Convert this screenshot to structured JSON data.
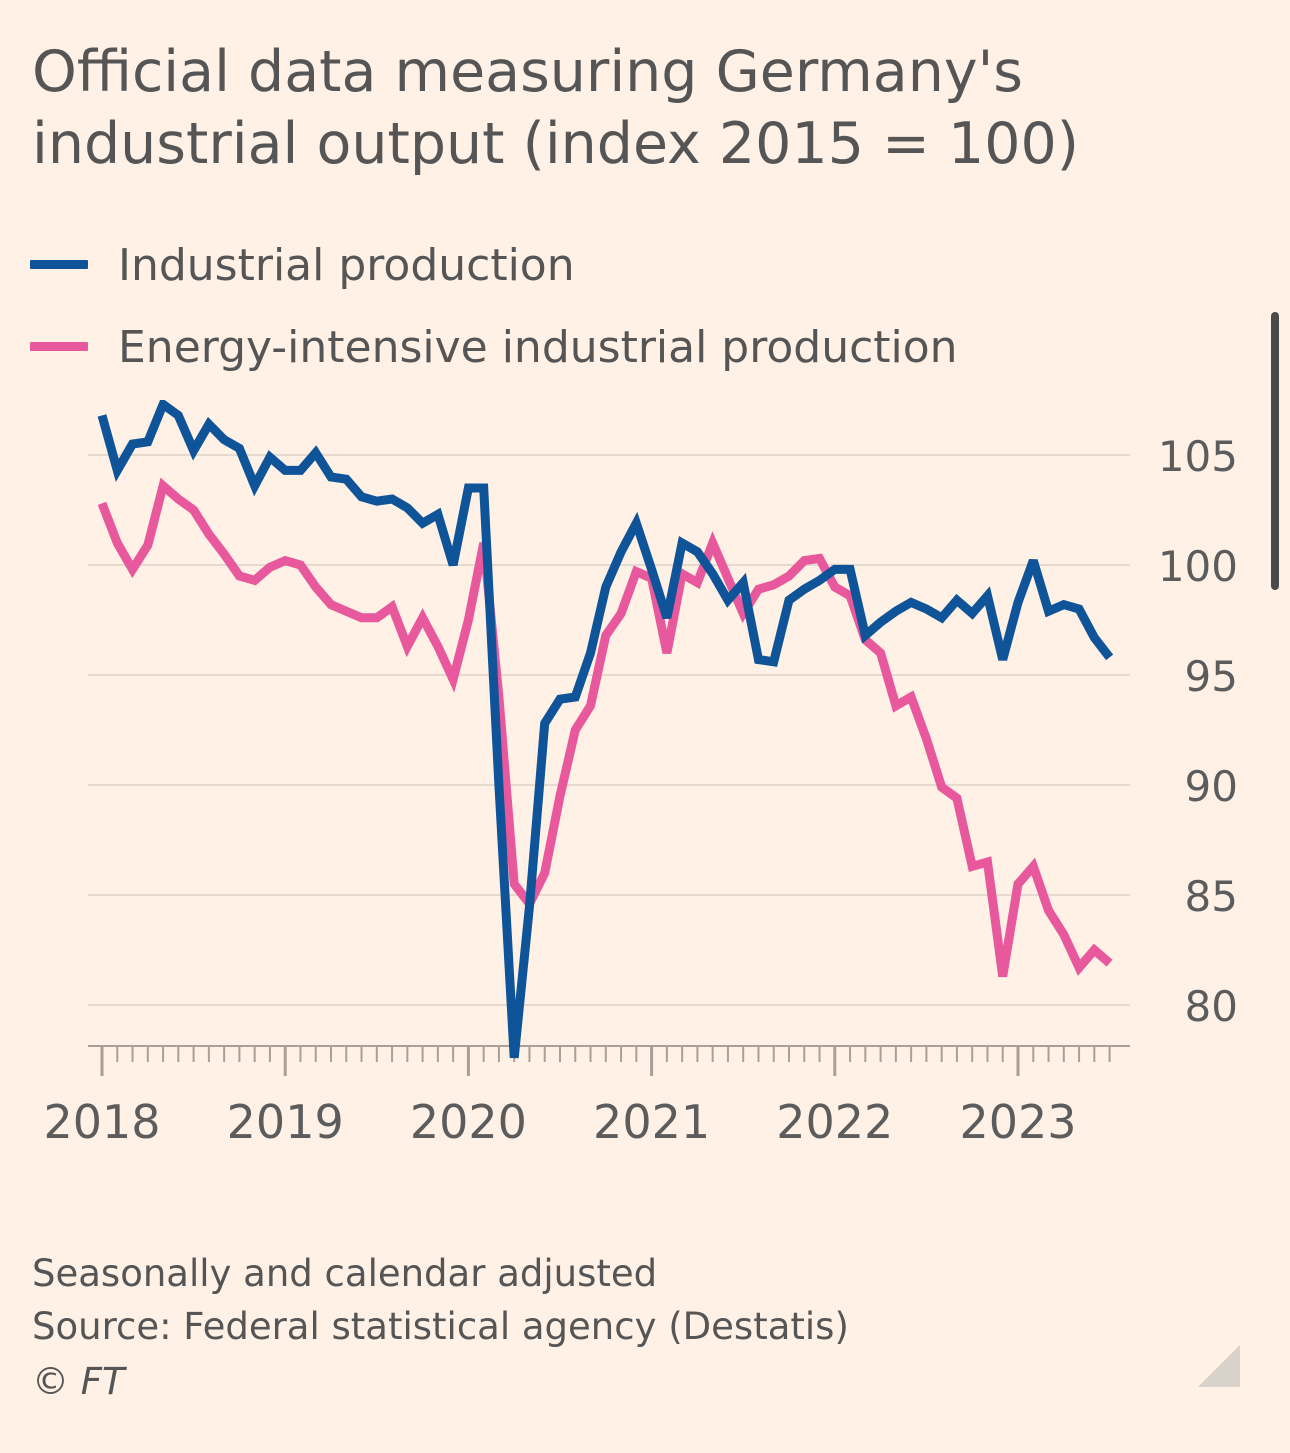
{
  "title": "Official data measuring Germany's industrial output (index 2015 = 100)",
  "legend": [
    {
      "label": "Industrial production",
      "color": "#0f5499"
    },
    {
      "label": "Energy-intensive industrial production",
      "color": "#e8589c"
    }
  ],
  "footnotes": {
    "line1": "Seasonally and calendar adjusted",
    "line2": "Source: Federal statistical agency (Destatis)",
    "credit": "© FT"
  },
  "colors": {
    "background": "#fff1e5",
    "grid": "#e6d9ce",
    "axis": "#a8a098",
    "text": "#555555"
  },
  "chart_data": {
    "type": "line",
    "x_unit": "month",
    "x_start": "2018-01",
    "x_end": "2023-07",
    "x_tick_labels": [
      "2018",
      "2019",
      "2020",
      "2021",
      "2022",
      "2023"
    ],
    "y_tick_labels": [
      "105",
      "100",
      "95",
      "90",
      "85",
      "80"
    ],
    "y_ticks": [
      105,
      100,
      95,
      90,
      85,
      80
    ],
    "ylim": [
      77.5,
      107.5
    ],
    "y_axis_side": "right",
    "grid": true,
    "legend_position": "top-left",
    "series": [
      {
        "name": "Industrial production",
        "color": "#0f5499",
        "values": [
          106.8,
          104.3,
          105.5,
          105.6,
          107.3,
          106.8,
          105.2,
          106.4,
          105.7,
          105.3,
          103.6,
          104.9,
          104.3,
          104.3,
          105.1,
          104.0,
          103.9,
          103.1,
          102.9,
          103.0,
          102.6,
          101.9,
          102.3,
          100.0,
          103.5,
          103.5,
          90.0,
          77.6,
          84.5,
          92.8,
          93.9,
          94.0,
          96.0,
          99.0,
          100.6,
          101.9,
          99.8,
          97.6,
          101.0,
          100.6,
          99.6,
          98.4,
          99.2,
          95.7,
          95.6,
          98.4,
          98.9,
          99.3,
          99.8,
          99.8,
          96.8,
          97.4,
          97.9,
          98.3,
          98.0,
          97.6,
          98.4,
          97.8,
          98.6,
          95.7,
          98.3,
          100.2,
          97.9,
          98.2,
          98.0,
          96.7,
          95.8
        ]
      },
      {
        "name": "Energy-intensive industrial production",
        "color": "#e8589c",
        "values": [
          102.8,
          101.0,
          99.8,
          100.9,
          103.6,
          103.0,
          102.5,
          101.4,
          100.5,
          99.5,
          99.3,
          99.9,
          100.2,
          100.0,
          99.0,
          98.2,
          97.9,
          97.6,
          97.6,
          98.1,
          96.3,
          97.6,
          96.3,
          94.8,
          97.5,
          101.0,
          94.0,
          85.5,
          84.6,
          86.0,
          89.5,
          92.5,
          93.6,
          96.8,
          97.8,
          99.7,
          99.4,
          96.0,
          99.6,
          99.2,
          101.0,
          99.4,
          97.8,
          98.9,
          99.1,
          99.5,
          100.2,
          100.3,
          99.0,
          98.6,
          96.6,
          96.0,
          93.6,
          94.0,
          92.1,
          89.9,
          89.4,
          86.3,
          86.5,
          81.3,
          85.5,
          86.3,
          84.3,
          83.2,
          81.7,
          82.5,
          81.9
        ]
      }
    ]
  }
}
